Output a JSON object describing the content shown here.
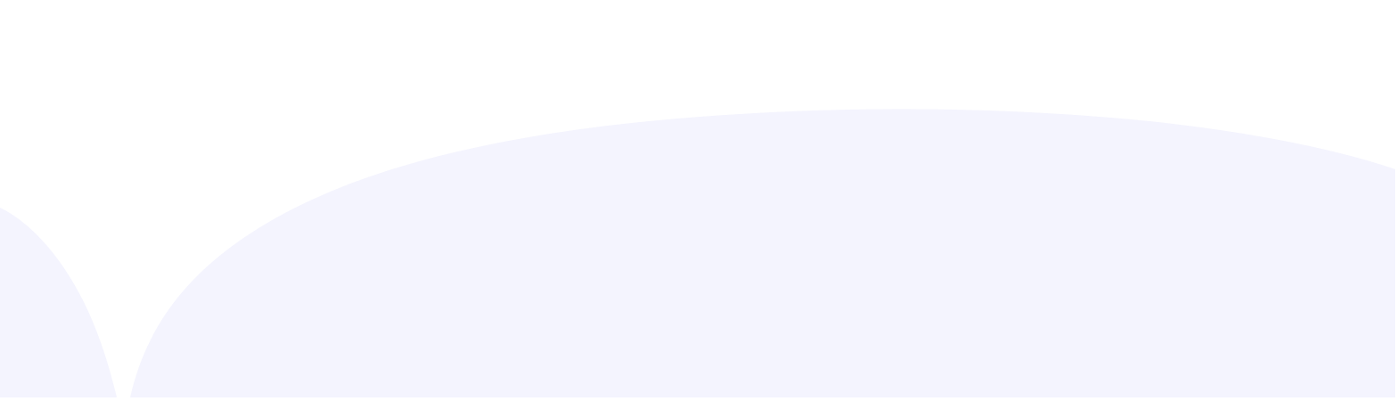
{
  "colors": {
    "background": "#ffffff",
    "shape_fill": "#f4f4fe"
  },
  "shapes": [
    {
      "name": "left-wave-shape"
    },
    {
      "name": "right-wave-shape"
    }
  ]
}
